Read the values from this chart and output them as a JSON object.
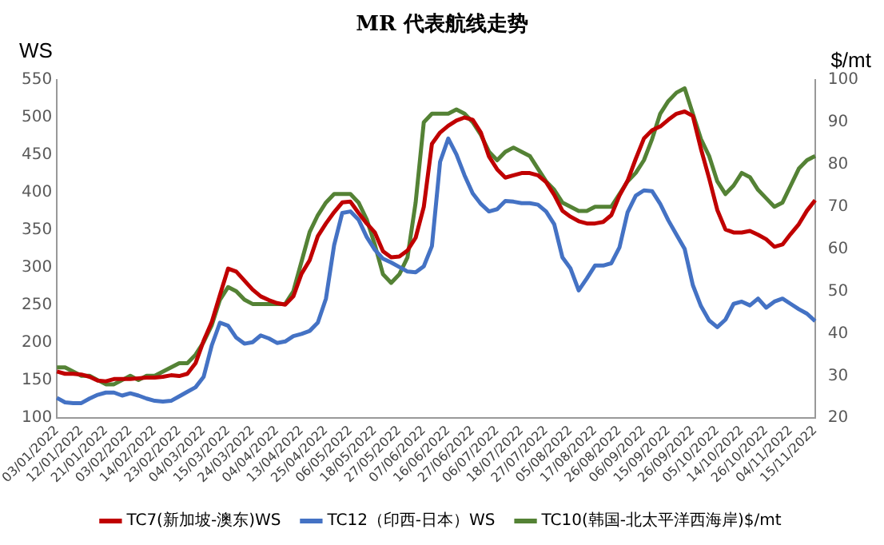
{
  "chart_data": {
    "type": "line",
    "title": "MR 代表航线走势",
    "ylabel": "WS",
    "y2label": "$/mt",
    "categories": [
      "03/01/2022",
      null,
      null,
      "12/01/2022",
      null,
      null,
      "21/01/2022",
      null,
      null,
      "03/02/2022",
      null,
      null,
      "14/02/2022",
      null,
      null,
      "23/02/2022",
      null,
      null,
      "04/03/2022",
      null,
      null,
      "15/03/2022",
      null,
      null,
      "24/03/2022",
      null,
      null,
      "04/04/2022",
      null,
      null,
      "13/04/2022",
      null,
      null,
      "25/04/2022",
      null,
      null,
      "06/05/2022",
      null,
      null,
      "18/05/2022",
      null,
      null,
      "27/05/2022",
      null,
      null,
      "07/06/2022",
      null,
      null,
      "16/06/2022",
      null,
      null,
      "27/06/2022",
      null,
      null,
      "06/07/2022",
      null,
      null,
      "18/07/2022",
      null,
      null,
      "27/07/2022",
      null,
      null,
      "05/08/2022",
      null,
      null,
      "17/08/2022",
      null,
      null,
      "26/08/2022",
      null,
      null,
      "06/09/2022",
      null,
      null,
      "15/09/2022",
      null,
      null,
      "26/09/2022",
      null,
      null,
      "05/10/2022",
      null,
      null,
      "14/10/2022",
      null,
      null,
      "26/10/2022",
      null,
      null,
      "04/11/2022",
      null,
      null,
      "15/11/2022"
    ],
    "series": [
      {
        "name": "TC7(新加坡-澳东)WS",
        "color": "#c00000",
        "values": [
          162,
          159,
          159,
          158,
          155,
          150,
          149,
          152,
          152,
          152,
          153,
          154,
          154,
          155,
          157,
          156,
          159,
          173,
          203,
          228,
          264,
          299,
          295,
          283,
          271,
          262,
          257,
          253,
          251,
          262,
          292,
          310,
          342,
          359,
          374,
          387,
          388,
          373,
          359,
          347,
          322,
          314,
          315,
          323,
          340,
          381,
          465,
          480,
          489,
          496,
          500,
          497,
          480,
          448,
          431,
          420,
          423,
          426,
          426,
          423,
          414,
          397,
          376,
          368,
          362,
          359,
          359,
          361,
          370,
          396,
          416,
          445,
          472,
          483,
          488,
          497,
          505,
          508,
          502,
          458,
          419,
          377,
          351,
          347,
          347,
          349,
          344,
          338,
          328,
          331,
          345,
          358,
          376,
          390
        ]
      },
      {
        "name": "TC12（印西-日本）WS",
        "color": "#4472c4",
        "values": [
          127,
          121,
          120,
          120,
          126,
          131,
          134,
          134,
          130,
          133,
          130,
          126,
          123,
          122,
          123,
          129,
          135,
          141,
          155,
          197,
          227,
          223,
          207,
          199,
          201,
          210,
          206,
          200,
          202,
          209,
          212,
          216,
          227,
          259,
          330,
          373,
          375,
          364,
          341,
          324,
          312,
          307,
          301,
          295,
          294,
          302,
          329,
          441,
          472,
          451,
          423,
          399,
          385,
          375,
          378,
          389,
          388,
          386,
          386,
          384,
          375,
          358,
          314,
          299,
          270,
          286,
          303,
          303,
          306,
          327,
          374,
          396,
          403,
          402,
          385,
          363,
          344,
          325,
          277,
          249,
          230,
          221,
          231,
          252,
          255,
          250,
          259,
          247,
          255,
          259,
          252,
          245,
          239,
          229
        ]
      },
      {
        "name": "TC10(韩国-北太平洋西海岸)$/mt",
        "color": "#548235",
        "axis": "y2",
        "values": [
          32,
          32,
          31,
          30,
          30,
          29,
          28,
          28,
          29,
          30,
          29,
          30,
          30,
          31,
          32,
          33,
          33,
          35,
          38,
          42,
          48,
          51,
          50,
          48,
          47,
          47,
          47,
          47,
          47,
          50,
          57,
          64,
          68,
          71,
          73,
          73,
          73,
          71,
          67,
          61,
          54,
          52,
          54,
          58,
          71,
          90,
          92,
          92,
          92,
          93,
          92,
          90,
          87,
          83,
          81,
          83,
          84,
          83,
          82,
          79,
          76,
          74,
          71,
          70,
          69,
          69,
          70,
          70,
          70,
          73,
          76,
          78,
          81,
          86,
          92,
          95,
          97,
          98,
          92,
          86,
          82,
          76,
          73,
          75,
          78,
          77,
          74,
          72,
          70,
          71,
          75,
          79,
          81,
          82
        ]
      }
    ],
    "ylim": [
      100,
      550
    ],
    "yticks": [
      100,
      150,
      200,
      250,
      300,
      350,
      400,
      450,
      500,
      550
    ],
    "y2lim": [
      20,
      100
    ],
    "y2ticks": [
      20,
      30,
      40,
      50,
      60,
      70,
      80,
      90,
      100
    ],
    "grid": false,
    "legend": "bottom",
    "marker": "none",
    "line_style": "solid"
  }
}
